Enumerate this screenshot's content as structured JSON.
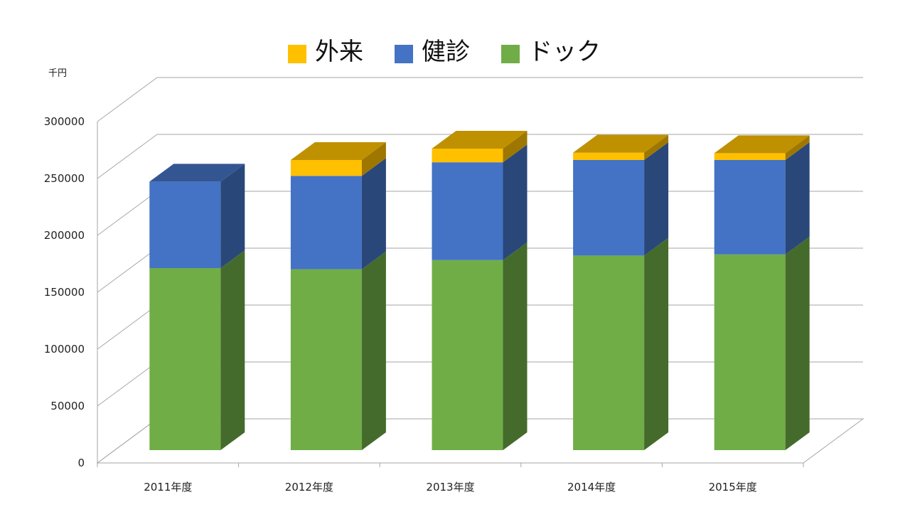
{
  "chart_data": {
    "type": "bar",
    "stacked": true,
    "three_d": true,
    "categories": [
      "2011年度",
      "2012年度",
      "2013年度",
      "2014年度",
      "2015年度"
    ],
    "series": [
      {
        "name": "ドック",
        "color": "#70AD47",
        "values": [
          160000,
          159000,
          167000,
          171000,
          172000
        ]
      },
      {
        "name": "健診",
        "color": "#4472C4",
        "values": [
          76000,
          82000,
          86000,
          84000,
          83000
        ]
      },
      {
        "name": "外来",
        "color": "#FFC000",
        "values": [
          0,
          14000,
          12000,
          6500,
          6000
        ]
      }
    ],
    "legend_order": [
      "外来",
      "健診",
      "ドック"
    ],
    "legend_position": "top",
    "y_unit": "千円",
    "ylim": [
      0,
      300000
    ],
    "yticks": [
      0,
      50000,
      100000,
      150000,
      200000,
      250000,
      300000
    ],
    "grid": true
  }
}
